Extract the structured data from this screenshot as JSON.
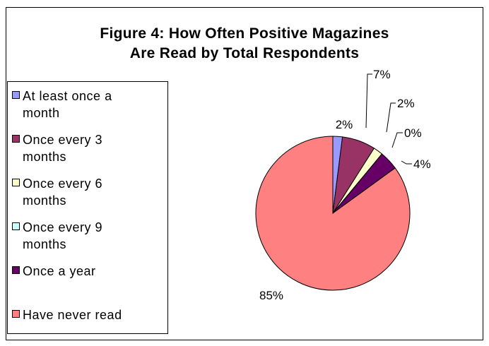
{
  "chart_data": {
    "type": "pie",
    "title": "Figure 4: How Often Positive Magazines Are Read by Total Respondents",
    "title_lines": [
      "Figure 4: How Often Positive Magazines",
      "Are Read by Total Respondents"
    ],
    "legend_position": "left",
    "categories": [
      "At least once a month",
      "Once every 3 months",
      "Once every 6 months",
      "Once every 9 months",
      "Once a year",
      "Have never read"
    ],
    "legend_lines": [
      [
        "At least once a",
        "month"
      ],
      [
        "Once every 3",
        "months"
      ],
      [
        "Once every 6",
        "months"
      ],
      [
        "Once every 9",
        "months"
      ],
      [
        "Once a year"
      ],
      [
        "Have never read"
      ]
    ],
    "values": [
      2,
      7,
      2,
      0,
      4,
      85
    ],
    "data_labels": [
      "2%",
      "7%",
      "2%",
      "0%",
      "4%",
      "85%"
    ],
    "colors": [
      "#9999FF",
      "#993366",
      "#FFFFCC",
      "#CCFFFF",
      "#660066",
      "#FF8080"
    ]
  }
}
